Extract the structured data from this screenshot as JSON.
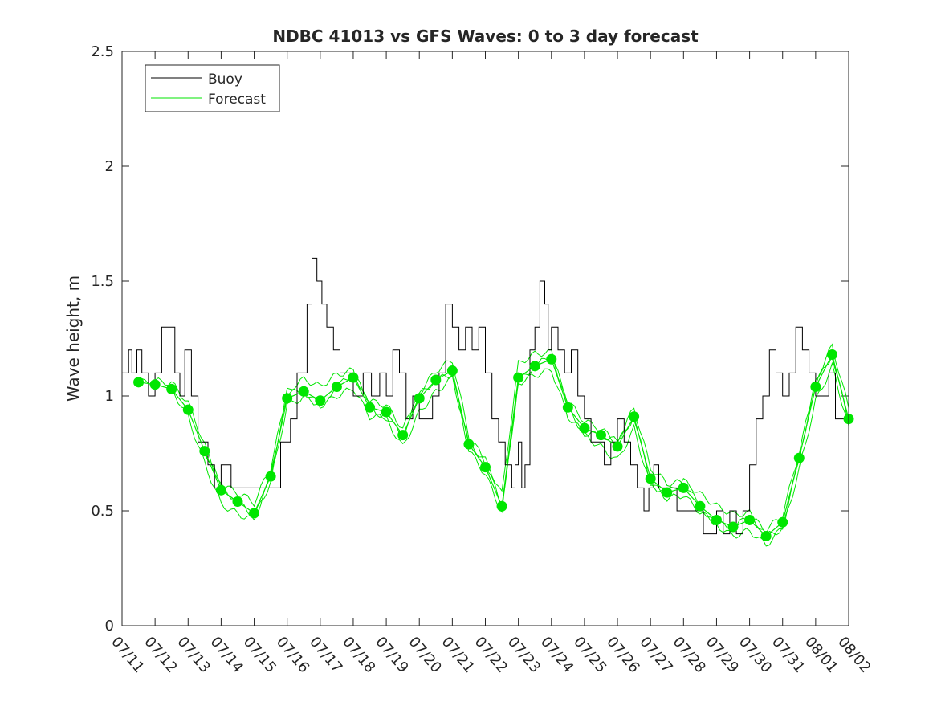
{
  "chart_data": {
    "type": "line",
    "title": "NDBC 41013 vs GFS Waves: 0 to 3 day forecast",
    "xlabel": "",
    "ylabel": "Wave height, m",
    "xlim": [
      "07/11",
      "08/02"
    ],
    "ylim": [
      0,
      2.5
    ],
    "y_ticks": [
      0,
      0.5,
      1,
      1.5,
      2,
      2.5
    ],
    "y_tick_labels": [
      "0",
      "0.5",
      "1",
      "1.5",
      "2",
      "2.5"
    ],
    "x_tick_labels": [
      "07/11",
      "07/12",
      "07/13",
      "07/14",
      "07/15",
      "07/16",
      "07/17",
      "07/18",
      "07/19",
      "07/20",
      "07/21",
      "07/22",
      "07/23",
      "07/24",
      "07/25",
      "07/26",
      "07/27",
      "07/28",
      "07/29",
      "07/30",
      "07/31",
      "08/01",
      "08/02"
    ],
    "legend": {
      "position": "top-left",
      "entries": [
        "Buoy",
        "Forecast"
      ]
    },
    "colors": {
      "buoy": "#000000",
      "forecast": "#00e600"
    },
    "series": [
      {
        "name": "Buoy",
        "x_day": [
          0.0,
          0.2,
          0.3,
          0.45,
          0.6,
          0.8,
          1.0,
          1.2,
          1.45,
          1.6,
          1.75,
          1.9,
          2.1,
          2.3,
          2.6,
          2.8,
          3.0,
          3.3,
          3.6,
          3.8,
          4.0,
          4.4,
          4.8,
          5.1,
          5.3,
          5.6,
          5.75,
          5.9,
          6.05,
          6.2,
          6.4,
          6.6,
          6.8,
          7.0,
          7.3,
          7.55,
          7.8,
          8.0,
          8.2,
          8.4,
          8.6,
          8.8,
          9.0,
          9.2,
          9.4,
          9.6,
          9.8,
          10.0,
          10.2,
          10.4,
          10.6,
          10.8,
          11.0,
          11.2,
          11.4,
          11.6,
          11.8,
          11.9,
          12.0,
          12.1,
          12.2,
          12.35,
          12.5,
          12.65,
          12.8,
          12.9,
          13.0,
          13.2,
          13.4,
          13.6,
          13.8,
          14.0,
          14.2,
          14.4,
          14.6,
          14.8,
          15.0,
          15.2,
          15.4,
          15.6,
          15.8,
          15.95,
          16.1,
          16.25,
          16.4,
          16.6,
          16.8,
          17.0,
          17.2,
          17.4,
          17.6,
          17.8,
          18.0,
          18.2,
          18.4,
          18.6,
          18.8,
          19.0,
          19.2,
          19.4,
          19.6,
          19.8,
          20.0,
          20.2,
          20.4,
          20.6,
          20.8,
          21.0,
          21.2,
          21.4,
          21.6,
          21.8,
          22.0
        ],
        "y": [
          1.1,
          1.2,
          1.1,
          1.2,
          1.1,
          1.0,
          1.1,
          1.3,
          1.3,
          1.1,
          1.0,
          1.2,
          1.0,
          0.8,
          0.7,
          0.6,
          0.7,
          0.6,
          0.6,
          0.6,
          0.6,
          0.6,
          0.8,
          0.9,
          1.1,
          1.4,
          1.6,
          1.5,
          1.4,
          1.3,
          1.2,
          1.1,
          1.1,
          1.0,
          1.1,
          1.0,
          1.1,
          1.0,
          1.2,
          1.1,
          0.9,
          1.0,
          0.9,
          0.9,
          1.0,
          1.1,
          1.4,
          1.3,
          1.2,
          1.3,
          1.2,
          1.3,
          1.1,
          0.9,
          0.8,
          0.7,
          0.6,
          0.7,
          0.8,
          0.6,
          0.7,
          1.2,
          1.3,
          1.5,
          1.4,
          1.2,
          1.3,
          1.2,
          1.1,
          1.2,
          1.0,
          0.9,
          0.8,
          0.8,
          0.7,
          0.8,
          0.9,
          0.8,
          0.7,
          0.6,
          0.5,
          0.6,
          0.7,
          0.6,
          0.6,
          0.6,
          0.5,
          0.5,
          0.5,
          0.5,
          0.4,
          0.4,
          0.5,
          0.4,
          0.5,
          0.4,
          0.5,
          0.7,
          0.9,
          1.0,
          1.2,
          1.1,
          1.0,
          1.1,
          1.3,
          1.2,
          1.1,
          1.0,
          1.0,
          1.1,
          0.9,
          0.9,
          0.9
        ]
      },
      {
        "name": "Forecast",
        "x_day": [
          0.5,
          1.0,
          1.5,
          2.0,
          2.5,
          3.0,
          3.5,
          4.0,
          4.5,
          5.0,
          5.5,
          6.0,
          6.5,
          7.0,
          7.5,
          8.0,
          8.5,
          9.0,
          9.5,
          10.0,
          10.5,
          11.0,
          11.5,
          12.0,
          12.5,
          13.0,
          13.5,
          14.0,
          14.5,
          15.0,
          15.5,
          16.0,
          16.5,
          17.0,
          17.5,
          18.0,
          18.5,
          19.0,
          19.5,
          20.0,
          20.5,
          21.0,
          21.5,
          22.0
        ],
        "y": [
          1.06,
          1.05,
          1.03,
          0.94,
          0.76,
          0.59,
          0.54,
          0.49,
          0.65,
          0.99,
          1.02,
          0.98,
          1.04,
          1.08,
          0.95,
          0.93,
          0.83,
          0.99,
          1.07,
          1.11,
          0.79,
          0.69,
          0.52,
          1.08,
          1.13,
          1.16,
          0.95,
          0.86,
          0.83,
          0.78,
          0.91,
          0.64,
          0.58,
          0.6,
          0.52,
          0.46,
          0.43,
          0.46,
          0.39,
          0.45,
          0.73,
          1.04,
          1.18,
          0.9
        ]
      }
    ]
  }
}
